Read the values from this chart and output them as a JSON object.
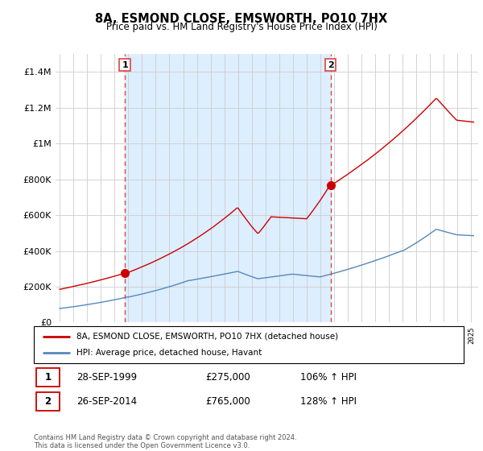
{
  "title": "8A, ESMOND CLOSE, EMSWORTH, PO10 7HX",
  "subtitle": "Price paid vs. HM Land Registry's House Price Index (HPI)",
  "legend_label_red": "8A, ESMOND CLOSE, EMSWORTH, PO10 7HX (detached house)",
  "legend_label_blue": "HPI: Average price, detached house, Havant",
  "transaction1_date": "28-SEP-1999",
  "transaction1_price": 275000,
  "transaction1_label": "106% ↑ HPI",
  "transaction2_date": "26-SEP-2014",
  "transaction2_price": 765000,
  "transaction2_label": "128% ↑ HPI",
  "footnote": "Contains HM Land Registry data © Crown copyright and database right 2024.\nThis data is licensed under the Open Government Licence v3.0.",
  "red_color": "#cc0000",
  "blue_color": "#5588bb",
  "shade_color": "#ddeeff",
  "dashed_color": "#dd4444",
  "grid_color": "#cccccc",
  "ylim": [
    0,
    1500000
  ],
  "yticks": [
    0,
    200000,
    400000,
    600000,
    800000,
    1000000,
    1200000,
    1400000
  ],
  "transaction1_x": 1999.75,
  "transaction2_x": 2014.75,
  "xlim_min": 1994.7,
  "xlim_max": 2025.5
}
